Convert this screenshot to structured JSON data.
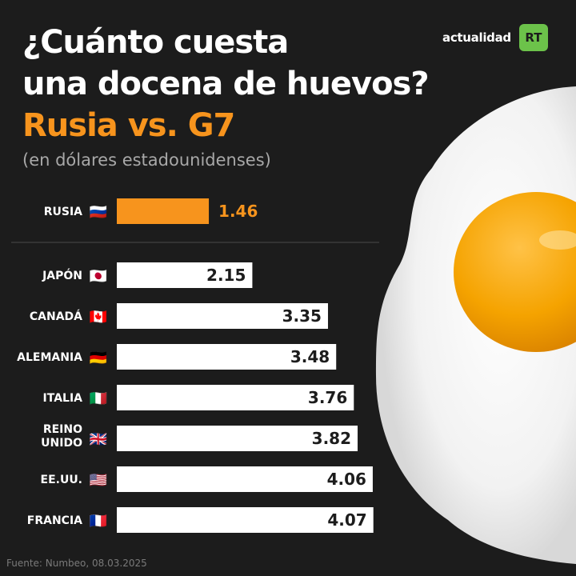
{
  "title_line1": "¿Cuánto cuesta",
  "title_line2": "una docena de huevos?",
  "title_line3": "Rusia vs. G7",
  "subtitle": "(en dólares estadounidenses)",
  "logo": {
    "text": "actualidad",
    "badge": "RT",
    "badge_color": "#6cc24a"
  },
  "source": "Fuente: Numbeo, 08.03.2025",
  "colors": {
    "highlight": "#f7941d",
    "bar": "#ffffff",
    "background": "#1c1c1c",
    "value_dark": "#1c1c1c"
  },
  "chart_data": {
    "type": "bar",
    "orientation": "horizontal",
    "title": "¿Cuánto cuesta una docena de huevos? Rusia vs. G7",
    "subtitle": "(en dólares estadounidenses)",
    "xlabel": "",
    "ylabel": "",
    "grid": false,
    "categories": [
      {
        "label": [
          "RUSIA"
        ],
        "flag": "🇷🇺",
        "value": 1.46,
        "highlight": true
      },
      {
        "label": [
          "JAPÓN"
        ],
        "flag": "🇯🇵",
        "value": 2.15,
        "highlight": false
      },
      {
        "label": [
          "CANADÁ"
        ],
        "flag": "🇨🇦",
        "value": 3.35,
        "highlight": false
      },
      {
        "label": [
          "ALEMANIA"
        ],
        "flag": "🇩🇪",
        "value": 3.48,
        "highlight": false
      },
      {
        "label": [
          "ITALIA"
        ],
        "flag": "🇮🇹",
        "value": 3.76,
        "highlight": false
      },
      {
        "label": [
          "REINO",
          "UNIDO"
        ],
        "flag": "🇬🇧",
        "value": 3.82,
        "highlight": false
      },
      {
        "label": [
          "EE.UU."
        ],
        "flag": "🇺🇸",
        "value": 4.06,
        "highlight": false
      },
      {
        "label": [
          "FRANCIA"
        ],
        "flag": "🇫🇷",
        "value": 4.07,
        "highlight": false
      }
    ]
  }
}
